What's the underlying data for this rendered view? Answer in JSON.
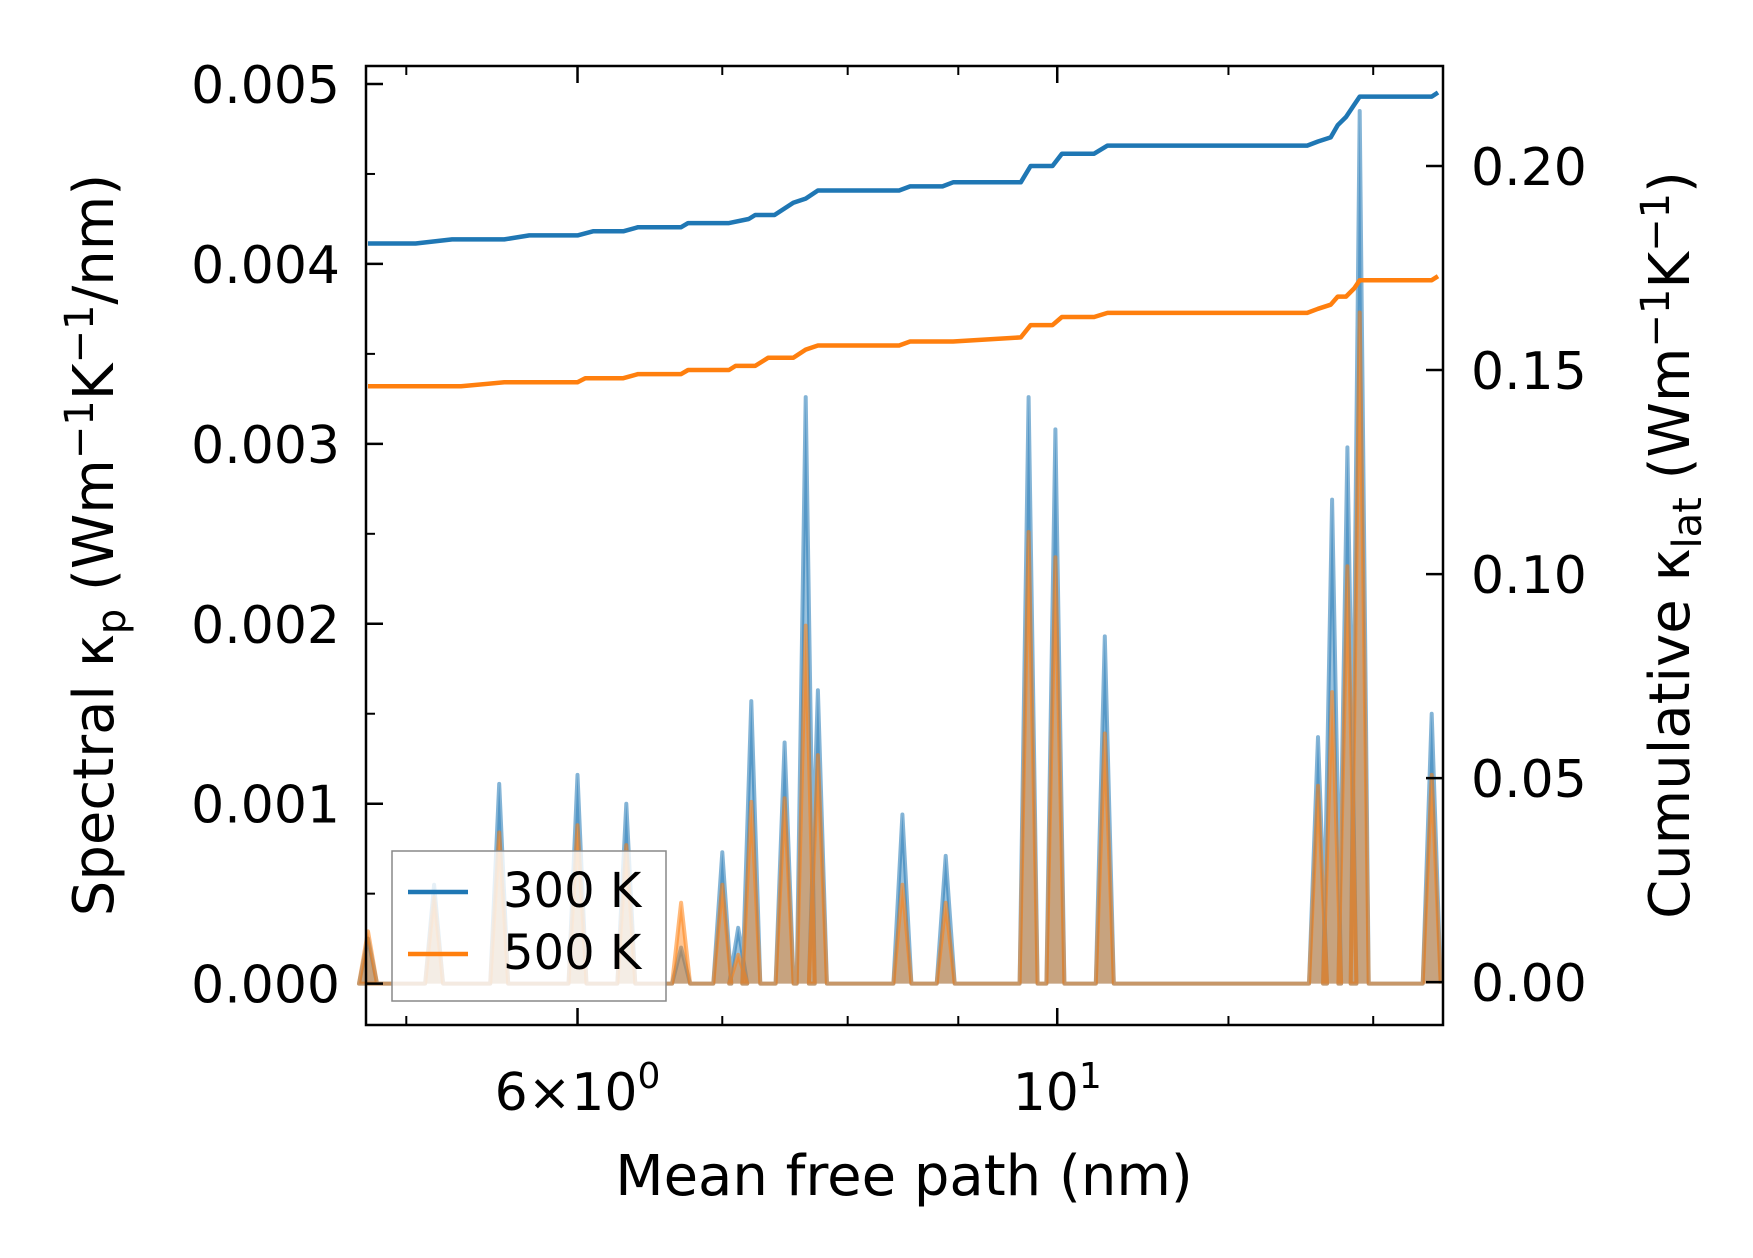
{
  "chart_data": {
    "type": "line",
    "xscale": "log",
    "xlabel": "Mean free path (nm)",
    "xlim": [
      4.79,
      15.08
    ],
    "xticks": [
      {
        "value": 6,
        "mantissa": "6",
        "base": "10",
        "exp": "0"
      },
      {
        "value": 10,
        "mantissa": "",
        "base": "10",
        "exp": "1"
      }
    ],
    "left_axis": {
      "label_pre": "Spectral κ",
      "label_sub": "p",
      "label_mid": " (Wm",
      "label_sup1": "−1",
      "label_mid2": "K",
      "label_sup2": "−1",
      "label_post": "/nm)",
      "ylim": [
        -0.00023,
        0.0051
      ],
      "ticks": [
        "0.000",
        "0.001",
        "0.002",
        "0.003",
        "0.004",
        "0.005"
      ],
      "tick_values": [
        0,
        0.001,
        0.002,
        0.003,
        0.004,
        0.005
      ]
    },
    "right_axis": {
      "label_pre": "Cumulative κ",
      "label_sub": "lat",
      "label_mid": " (Wm",
      "label_sup1": "−1",
      "label_mid2": "K",
      "label_sup2": "−1",
      "label_post": ")",
      "ylim": [
        -0.0105,
        0.2245
      ],
      "ticks": [
        "0.00",
        "0.05",
        "0.10",
        "0.15",
        "0.20"
      ],
      "tick_values": [
        0,
        0.05,
        0.1,
        0.15,
        0.2
      ]
    },
    "legend": {
      "position": "lower-left",
      "entries": [
        "300 K",
        "500 K"
      ]
    },
    "series": [
      {
        "name": "300 K",
        "color": "#1f77b4",
        "spectral_peaks": [
          [
            4.8,
            0.00025
          ],
          [
            5.15,
            0.00055
          ],
          [
            5.52,
            0.00111
          ],
          [
            6.0,
            0.00116
          ],
          [
            6.32,
            0.001
          ],
          [
            6.7,
            0.0002
          ],
          [
            7.0,
            0.00073
          ],
          [
            7.12,
            0.00031
          ],
          [
            7.22,
            0.00157
          ],
          [
            7.48,
            0.00134
          ],
          [
            7.65,
            0.00326
          ],
          [
            7.75,
            0.00163
          ],
          [
            8.48,
            0.00094
          ],
          [
            8.88,
            0.00071
          ],
          [
            9.7,
            0.00326
          ],
          [
            9.98,
            0.00308
          ],
          [
            10.52,
            0.00193
          ],
          [
            13.2,
            0.00137
          ],
          [
            13.4,
            0.00269
          ],
          [
            13.62,
            0.00298
          ],
          [
            13.8,
            0.00485
          ],
          [
            14.9,
            0.0015
          ]
        ],
        "cumulative": [
          [
            4.8,
            0.181
          ],
          [
            5.05,
            0.181
          ],
          [
            5.25,
            0.182
          ],
          [
            5.55,
            0.182
          ],
          [
            5.7,
            0.183
          ],
          [
            6.0,
            0.183
          ],
          [
            6.1,
            0.184
          ],
          [
            6.3,
            0.184
          ],
          [
            6.4,
            0.185
          ],
          [
            6.7,
            0.185
          ],
          [
            6.75,
            0.186
          ],
          [
            7.0,
            0.186
          ],
          [
            7.05,
            0.186
          ],
          [
            7.2,
            0.187
          ],
          [
            7.25,
            0.188
          ],
          [
            7.4,
            0.188
          ],
          [
            7.55,
            0.191
          ],
          [
            7.65,
            0.192
          ],
          [
            7.75,
            0.194
          ],
          [
            8.45,
            0.194
          ],
          [
            8.55,
            0.195
          ],
          [
            8.85,
            0.195
          ],
          [
            8.95,
            0.196
          ],
          [
            9.62,
            0.196
          ],
          [
            9.72,
            0.2
          ],
          [
            9.95,
            0.2
          ],
          [
            10.05,
            0.203
          ],
          [
            10.4,
            0.203
          ],
          [
            10.55,
            0.205
          ],
          [
            13.05,
            0.205
          ],
          [
            13.2,
            0.206
          ],
          [
            13.38,
            0.207
          ],
          [
            13.48,
            0.21
          ],
          [
            13.6,
            0.212
          ],
          [
            13.72,
            0.215
          ],
          [
            13.8,
            0.217
          ],
          [
            14.9,
            0.217
          ],
          [
            15.0,
            0.218
          ]
        ]
      },
      {
        "name": "500 K",
        "color": "#ff7f0e",
        "spectral_peaks": [
          [
            4.8,
            0.00029
          ],
          [
            5.15,
            0.00048
          ],
          [
            5.52,
            0.00084
          ],
          [
            6.0,
            0.00088
          ],
          [
            6.32,
            0.00077
          ],
          [
            6.7,
            0.00045
          ],
          [
            7.0,
            0.00055
          ],
          [
            7.12,
            0.00016
          ],
          [
            7.22,
            0.00101
          ],
          [
            7.48,
            0.00103
          ],
          [
            7.65,
            0.00199
          ],
          [
            7.75,
            0.00127
          ],
          [
            8.48,
            0.00055
          ],
          [
            8.88,
            0.00045
          ],
          [
            9.7,
            0.00251
          ],
          [
            9.98,
            0.00237
          ],
          [
            10.52,
            0.00139
          ],
          [
            13.2,
            0.0011
          ],
          [
            13.4,
            0.00162
          ],
          [
            13.62,
            0.00232
          ],
          [
            13.8,
            0.00373
          ],
          [
            14.9,
            0.00116
          ]
        ],
        "cumulative": [
          [
            4.8,
            0.146
          ],
          [
            5.05,
            0.146
          ],
          [
            5.3,
            0.146
          ],
          [
            5.55,
            0.147
          ],
          [
            5.8,
            0.147
          ],
          [
            6.0,
            0.147
          ],
          [
            6.05,
            0.148
          ],
          [
            6.3,
            0.148
          ],
          [
            6.4,
            0.149
          ],
          [
            6.7,
            0.149
          ],
          [
            6.75,
            0.15
          ],
          [
            7.05,
            0.15
          ],
          [
            7.1,
            0.151
          ],
          [
            7.25,
            0.151
          ],
          [
            7.35,
            0.153
          ],
          [
            7.55,
            0.153
          ],
          [
            7.65,
            0.155
          ],
          [
            7.75,
            0.156
          ],
          [
            8.45,
            0.156
          ],
          [
            8.55,
            0.157
          ],
          [
            8.85,
            0.157
          ],
          [
            8.95,
            0.157
          ],
          [
            9.62,
            0.158
          ],
          [
            9.72,
            0.161
          ],
          [
            9.95,
            0.161
          ],
          [
            10.05,
            0.163
          ],
          [
            10.4,
            0.163
          ],
          [
            10.55,
            0.164
          ],
          [
            13.05,
            0.164
          ],
          [
            13.2,
            0.165
          ],
          [
            13.38,
            0.166
          ],
          [
            13.48,
            0.168
          ],
          [
            13.6,
            0.168
          ],
          [
            13.72,
            0.17
          ],
          [
            13.8,
            0.172
          ],
          [
            14.9,
            0.172
          ],
          [
            15.0,
            0.173
          ]
        ]
      }
    ]
  }
}
